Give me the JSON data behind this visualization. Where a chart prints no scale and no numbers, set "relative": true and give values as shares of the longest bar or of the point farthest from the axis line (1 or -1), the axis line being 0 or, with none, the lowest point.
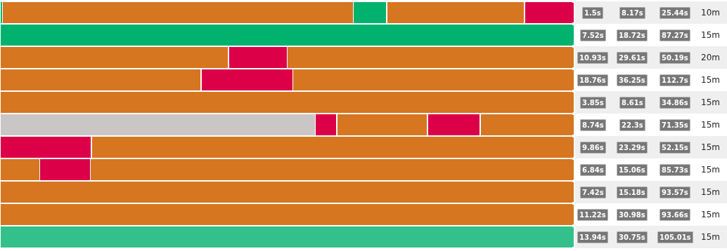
{
  "chart_data": {
    "type": "bar",
    "orientation": "horizontal",
    "stacked": true,
    "relative": true,
    "categories": [
      null,
      null,
      null,
      null,
      null,
      null,
      null,
      null,
      null,
      null,
      null
    ],
    "series": [
      {
        "colors": [
          "#00b26e",
          "#00b26e",
          "#d67621",
          "#d67621",
          "#d67621",
          "#cac6c6",
          "#dc0048",
          "#d67621",
          "#d67621",
          "#d67621",
          "#33c08a"
        ],
        "values": [
          0.004,
          1.0,
          0.398,
          0.35,
          1.0,
          0.549,
          0.159,
          0.069,
          1.0,
          1.0,
          1.0
        ]
      },
      {
        "colors": [
          "#d67621",
          null,
          "#dc0048",
          "#dc0048",
          null,
          "#dc0048",
          "#d67621",
          "#dc0048",
          null,
          null,
          null
        ],
        "values": [
          0.611,
          null,
          0.102,
          0.16,
          null,
          0.037,
          0.841,
          0.088,
          null,
          null,
          null
        ]
      },
      {
        "colors": [
          "#00b26e",
          null,
          "#d67621",
          "#d67621",
          null,
          "#d67621",
          null,
          "#d67621",
          null,
          null,
          null
        ],
        "values": [
          0.058,
          null,
          0.5,
          0.49,
          null,
          0.158,
          null,
          0.843,
          null,
          null,
          null
        ]
      },
      {
        "colors": [
          "#d67621",
          null,
          null,
          null,
          null,
          "#dc0048",
          null,
          null,
          null,
          null,
          null
        ],
        "values": [
          0.24,
          null,
          null,
          null,
          null,
          0.092,
          null,
          null,
          null,
          null,
          null
        ]
      },
      {
        "colors": [
          "#dc0048",
          null,
          null,
          null,
          null,
          "#d67621",
          null,
          null,
          null,
          null,
          null
        ],
        "values": [
          0.087,
          null,
          null,
          null,
          null,
          0.164,
          null,
          null,
          null,
          null,
          null
        ]
      }
    ],
    "annotations": [
      "1.5s",
      "8.17s",
      "25.44s",
      "10m",
      "7.52s",
      "18.72s",
      "87.27s",
      "15m",
      "10.93s",
      "29.61s",
      "50.19s",
      "20m",
      "18.76s",
      "36.25s",
      "112.7s",
      "15m",
      "3.85s",
      "8.61s",
      "34.86s",
      "15m",
      "8.74s",
      "22.3s",
      "71.35s",
      "15m",
      "9.86s",
      "23.29s",
      "52.15s",
      "15m",
      "6.84s",
      "15.06s",
      "85.73s",
      "15m",
      "7.42s",
      "15.18s",
      "93.57s",
      "15m",
      "11.22s",
      "30.98s",
      "93.66s",
      "15m",
      "13.94s",
      "30.75s",
      "105.01s",
      "15m"
    ]
  }
}
